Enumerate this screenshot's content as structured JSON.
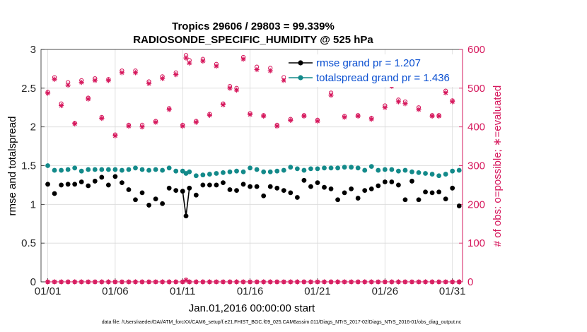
{
  "chart_data": {
    "type": "line",
    "title_line1": "Tropics 29606 / 29803 = 99.339%",
    "title_line2": "RADIOSONDE_SPECIFIC_HUMIDITY @ 525 hPa",
    "xlabel": "Jan.01,2016 00:00:00 start",
    "ylabel_left": "rmse and totalspread",
    "ylabel_right": "# of obs: o=possible; ∗=evaluated",
    "footer": "data file: /Users/raeder/DAI/ATM_forcXX/CAM6_setup/f.e21.FHIST_BGC.f09_025.CAM6assim.011/Diags_NTrS_2017-02/Diags_NTrS_2016-01/obs_diag_output.nc",
    "xlim": [
      0.5,
      31.75
    ],
    "ylim_left": [
      0,
      3
    ],
    "ylim_right": [
      0,
      600
    ],
    "xticks": [
      1,
      6,
      11,
      16,
      21,
      26,
      31
    ],
    "xtick_labels": [
      "01/01",
      "01/06",
      "01/11",
      "01/16",
      "01/21",
      "01/26",
      "01/31"
    ],
    "yticks_left": [
      0,
      0.5,
      1,
      1.5,
      2,
      2.5,
      3
    ],
    "ytick_labels_left": [
      "0",
      "0.5",
      "1",
      "1.5",
      "2",
      "2.5",
      "3"
    ],
    "yticks_right": [
      0,
      100,
      200,
      300,
      400,
      500,
      600
    ],
    "ytick_labels_right": [
      "0",
      "100",
      "200",
      "300",
      "400",
      "500",
      "600"
    ],
    "colors": {
      "rmse": "#000000",
      "spread": "#138a8a",
      "obs": "#d6175c",
      "legend_text": "#0a4fd1",
      "grid": "#d9d9d9"
    },
    "legend": [
      {
        "name": "rmse",
        "label": "rmse grand pr = 1.207"
      },
      {
        "name": "spread",
        "label": "totalspread grand pr = 1.436"
      }
    ],
    "series": [
      {
        "name": "rmse",
        "x": [
          1,
          1.5,
          2,
          2.5,
          3,
          3.5,
          4,
          4.5,
          5,
          5.5,
          6,
          6.5,
          7,
          7.5,
          8,
          8.5,
          9,
          9.5,
          10,
          10.5,
          11,
          11.25,
          11.5,
          12,
          12.5,
          13,
          13.5,
          14,
          14.5,
          15,
          15.5,
          16,
          16.5,
          17,
          17.5,
          18,
          18.5,
          19,
          19.5,
          20,
          20.5,
          21,
          21.5,
          22,
          22.5,
          23,
          23.5,
          24,
          24.5,
          25,
          25.5,
          26,
          26.5,
          27,
          27.5,
          28,
          28.5,
          29,
          29.5,
          30,
          30.5,
          31,
          31.5
        ],
        "values": [
          1.26,
          1.14,
          1.25,
          1.26,
          1.26,
          1.29,
          1.24,
          1.3,
          1.35,
          1.25,
          1.36,
          1.28,
          1.19,
          1.06,
          1.15,
          0.99,
          1.07,
          1.01,
          1.21,
          1.18,
          1.17,
          0.85,
          1.21,
          1.12,
          1.25,
          1.25,
          1.25,
          1.28,
          1.19,
          1.18,
          1.26,
          1.23,
          1.23,
          1.11,
          1.23,
          1.21,
          1.18,
          1.15,
          1.09,
          1.31,
          1.23,
          1.28,
          1.22,
          1.2,
          1.06,
          1.15,
          1.2,
          1.08,
          1.18,
          1.2,
          1.24,
          1.29,
          1.29,
          1.25,
          1.06,
          1.3,
          1.06,
          1.16,
          1.15,
          1.16,
          1.07,
          1.21,
          0.98
        ]
      },
      {
        "name": "spread",
        "x": [
          1,
          1.5,
          2,
          2.5,
          3,
          3.5,
          4,
          4.5,
          5,
          5.5,
          6,
          6.5,
          7,
          7.5,
          8,
          8.5,
          9,
          9.5,
          10,
          10.5,
          11,
          11.25,
          11.5,
          12,
          12.5,
          13,
          13.5,
          14,
          14.5,
          15,
          15.5,
          16,
          16.5,
          17,
          17.5,
          18,
          18.5,
          19,
          19.5,
          20,
          20.5,
          21,
          21.5,
          22,
          22.5,
          23,
          23.5,
          24,
          24.5,
          25,
          25.5,
          26,
          26.5,
          27,
          27.5,
          28,
          28.5,
          29,
          29.5,
          30,
          30.5,
          31,
          31.5
        ],
        "values": [
          1.5,
          1.44,
          1.44,
          1.45,
          1.47,
          1.43,
          1.45,
          1.45,
          1.45,
          1.45,
          1.45,
          1.44,
          1.45,
          1.47,
          1.45,
          1.44,
          1.45,
          1.44,
          1.47,
          1.43,
          1.43,
          1.4,
          1.42,
          1.37,
          1.38,
          1.39,
          1.4,
          1.41,
          1.42,
          1.43,
          1.42,
          1.47,
          1.45,
          1.42,
          1.42,
          1.43,
          1.44,
          1.48,
          1.46,
          1.44,
          1.46,
          1.46,
          1.47,
          1.47,
          1.47,
          1.48,
          1.48,
          1.47,
          1.44,
          1.49,
          1.44,
          1.45,
          1.45,
          1.43,
          1.44,
          1.42,
          1.41,
          1.4,
          1.39,
          1.37,
          1.39,
          1.43,
          1.44
        ]
      },
      {
        "name": "obs_possible",
        "x": [
          1,
          1.5,
          2,
          2.5,
          3,
          3.5,
          4,
          4.5,
          5,
          5.5,
          6,
          6.5,
          7,
          7.5,
          8,
          8.5,
          9,
          9.5,
          10,
          10.5,
          11,
          11.25,
          11.5,
          12,
          12.5,
          13,
          13.5,
          14,
          14.5,
          15,
          15.5,
          16,
          16.5,
          17,
          17.5,
          18,
          18.5,
          19,
          19.5,
          20,
          20.5,
          21,
          21.5,
          22,
          22.5,
          23,
          23.5,
          24,
          24.5,
          25,
          25.5,
          26,
          26.5,
          27,
          27.5,
          28,
          28.5,
          29,
          29.5,
          30,
          30.5,
          31,
          31.5
        ],
        "values": [
          490,
          528,
          460,
          515,
          410,
          520,
          475,
          525,
          425,
          523,
          380,
          545,
          405,
          545,
          405,
          517,
          415,
          530,
          448,
          540,
          405,
          585,
          572,
          415,
          575,
          433,
          562,
          460,
          505,
          500,
          580,
          435,
          555,
          430,
          552,
          405,
          528,
          420,
          545,
          430,
          562,
          418,
          552,
          488,
          530,
          428,
          523,
          430,
          552,
          423,
          550,
          455,
          510,
          470,
          465,
          540,
          450,
          577,
          430,
          430,
          493,
          468,
          0
        ],
        "zero_markers_x": [
          1,
          1.5,
          2,
          2.5,
          3,
          3.5,
          4,
          4.5,
          5,
          5.5,
          6,
          6.5,
          7,
          7.5,
          8,
          8.5,
          9,
          9.5,
          10,
          10.5,
          11,
          11.5,
          12,
          12.5,
          13,
          13.5,
          14,
          14.5,
          15,
          15.5,
          16,
          16.5,
          17,
          17.5,
          18,
          18.5,
          19,
          19.5,
          20,
          20.5,
          21,
          21.5,
          22,
          22.5,
          23,
          23.5,
          24,
          24.5,
          25,
          25.5,
          26,
          26.5,
          27,
          27.5,
          28,
          28.5,
          29,
          29.5,
          30,
          30.5,
          31,
          31.5
        ]
      },
      {
        "name": "obs_evaluated",
        "x": [
          1,
          1.5,
          2,
          2.5,
          3,
          3.5,
          4,
          4.5,
          5,
          5.5,
          6,
          6.5,
          7,
          7.5,
          8,
          8.5,
          9,
          9.5,
          10,
          10.5,
          11,
          11.25,
          11.5,
          12,
          12.5,
          13,
          13.5,
          14,
          14.5,
          15,
          15.5,
          16,
          16.5,
          17,
          17.5,
          18,
          18.5,
          19,
          19.5,
          20,
          20.5,
          21,
          21.5,
          22,
          22.5,
          23,
          23.5,
          24,
          24.5,
          25,
          25.5,
          26,
          26.5,
          27,
          27.5,
          28,
          28.5,
          29,
          29.5,
          30,
          30.5,
          31,
          31.5
        ],
        "values": [
          487,
          523,
          455,
          508,
          408,
          515,
          472,
          520,
          422,
          520,
          377,
          540,
          402,
          540,
          400,
          512,
          412,
          525,
          445,
          535,
          402,
          578,
          565,
          412,
          570,
          430,
          557,
          457,
          500,
          495,
          575,
          432,
          548,
          428,
          545,
          402,
          520,
          417,
          535,
          428,
          555,
          415,
          545,
          482,
          525,
          425,
          518,
          428,
          545,
          420,
          545,
          450,
          505,
          465,
          460,
          535,
          445,
          570,
          428,
          428,
          488,
          465,
          0
        ],
        "special_point": {
          "x": 11.25,
          "value": 5
        }
      }
    ]
  }
}
